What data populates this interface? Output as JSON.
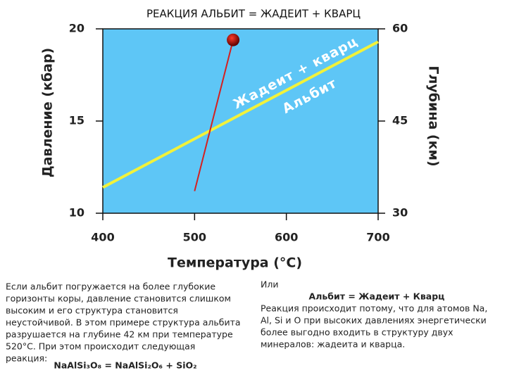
{
  "chart_data": {
    "type": "line",
    "title": "РЕАКЦИЯ АЛЬБИТ = ЖАДЕИТ + КВАРЦ",
    "x_label": "Температура (°C)",
    "y_label": "Давление (кбар)",
    "y2_label": "Глубина (км)",
    "xlim": [
      400,
      700
    ],
    "xticks": [
      400,
      500,
      600,
      700
    ],
    "ylim": [
      10,
      20
    ],
    "yticks": [
      10,
      15,
      20
    ],
    "y2lim": [
      30,
      60
    ],
    "y2ticks": [
      30,
      45,
      60
    ],
    "background": "#5ec6f6",
    "series": [
      {
        "color": "#f2f23a",
        "x": [
          400,
          700
        ],
        "values": [
          11.4,
          19.3
        ]
      },
      {
        "color": "#d42020",
        "x": [
          500,
          542
        ],
        "values": [
          11.2,
          19.4
        ],
        "end_marker": true
      }
    ],
    "annotations": [
      "Жадеит + кварц",
      "Альбит"
    ]
  },
  "notes": {
    "left": [
      "Если альбит погружается на более глубокие",
      "горизонты коры, давление становится слишком",
      "высоким и его структура становится",
      "неустойчивой. В этом примере структура альбита",
      "разрушается на глубине 42 км при температуре",
      "520°C. При этом происходит следующая",
      "реакция:"
    ],
    "formula": "NaAlSi₃O₈ = NaAlSi₂O₆ + SiO₂",
    "right_intro": "Или",
    "right_heading": "Альбит = Жадеит + Кварц",
    "right": [
      "Реакция происходит потому, что для атомов Na,",
      "Al, Si и O при высоких давлениях энергетически",
      "более выгодно входить в структуру двух",
      "минералов: жадеита и кварца."
    ]
  }
}
